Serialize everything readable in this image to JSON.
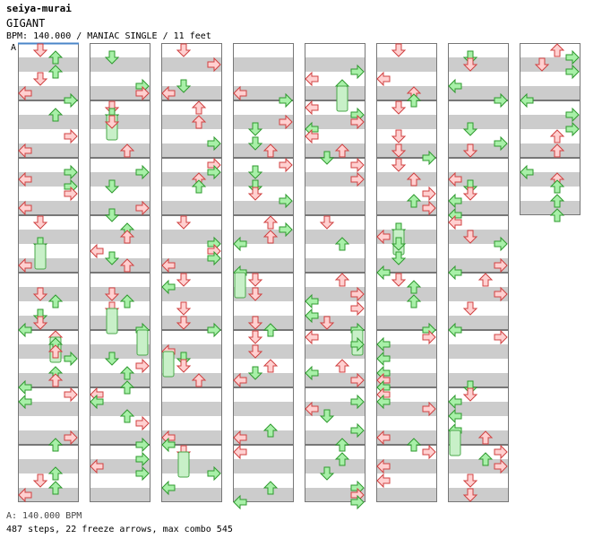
{
  "header": {
    "artist": "seiya-murai",
    "title": "GIGANT",
    "meta": "BPM: 140.000 / MANIAC SINGLE / 11 feet"
  },
  "chart": {
    "bpm_marker": "A",
    "colors": {
      "band_gray": "#cccccc",
      "band_white": "#ffffff",
      "border": "#777777",
      "start_line": "#4a86c8",
      "arrow_red_fill": "#ffd0d0",
      "arrow_red_stroke": "#d04040",
      "arrow_green_fill": "#a8f0a8",
      "arrow_green_stroke": "#2e9a2e",
      "freeze_fill": "#c8f0c8",
      "freeze_stroke": "#4aa84a"
    },
    "columns": 8,
    "measures_per_column": 8,
    "last_column_measures": 3
  },
  "footer": {
    "bpm_line": "A: 140.000 BPM",
    "stats_line": "487 steps, 22 freeze arrows, max combo 545"
  }
}
